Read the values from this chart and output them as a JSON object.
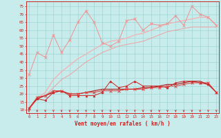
{
  "x": [
    0,
    1,
    2,
    3,
    4,
    5,
    6,
    7,
    8,
    9,
    10,
    11,
    12,
    13,
    14,
    15,
    16,
    17,
    18,
    19,
    20,
    21,
    22,
    23
  ],
  "line_rafale_marked": [
    32,
    46,
    43,
    57,
    46,
    54,
    65,
    72,
    65,
    52,
    50,
    53,
    66,
    67,
    60,
    64,
    63,
    64,
    69,
    63,
    75,
    70,
    68,
    63
  ],
  "line_rafale_smooth1": [
    10,
    17,
    21,
    29,
    34,
    38,
    42,
    45,
    48,
    51,
    53,
    54,
    55,
    57,
    58,
    60,
    62,
    64,
    65,
    66,
    67,
    68,
    68,
    63
  ],
  "line_rafale_smooth2": [
    10,
    17,
    19,
    24,
    29,
    32,
    36,
    40,
    43,
    46,
    48,
    50,
    51,
    52,
    53,
    55,
    57,
    59,
    60,
    61,
    62,
    62,
    62,
    62
  ],
  "line_vent_marked_tri": [
    11,
    17,
    16,
    21,
    22,
    19,
    19,
    19,
    19,
    21,
    28,
    24,
    25,
    28,
    25,
    25,
    25,
    24,
    27,
    28,
    28,
    27,
    26,
    21
  ],
  "line_vent_marked_x": [
    11,
    18,
    19,
    22,
    22,
    20,
    20,
    21,
    21,
    22,
    22,
    22,
    23,
    23,
    23,
    24,
    24,
    25,
    25,
    26,
    27,
    27,
    27,
    21
  ],
  "line_vent_smooth": [
    11,
    17,
    19,
    21,
    22,
    20,
    20,
    21,
    22,
    23,
    23,
    23,
    23,
    23,
    24,
    24,
    25,
    26,
    26,
    27,
    28,
    28,
    26,
    21
  ],
  "ylim": [
    8,
    78
  ],
  "xlim": [
    -0.3,
    23.3
  ],
  "yticks": [
    10,
    15,
    20,
    25,
    30,
    35,
    40,
    45,
    50,
    55,
    60,
    65,
    70,
    75
  ],
  "xticks": [
    0,
    1,
    2,
    3,
    4,
    5,
    6,
    7,
    8,
    9,
    10,
    11,
    12,
    13,
    14,
    15,
    16,
    17,
    18,
    19,
    20,
    21,
    22,
    23
  ],
  "xlabel": "Vent moyen/en rafales ( km/h )",
  "bg_color": "#c8ecec",
  "grid_color": "#a0d4d4",
  "col_light1": "#f09090",
  "col_light2": "#f4b0b0",
  "col_light3": "#f0a0a0",
  "col_dark1": "#cc2222",
  "col_dark2": "#dd3333",
  "col_dark3": "#aa1111",
  "tick_color": "#cc2222",
  "label_color": "#cc2222"
}
